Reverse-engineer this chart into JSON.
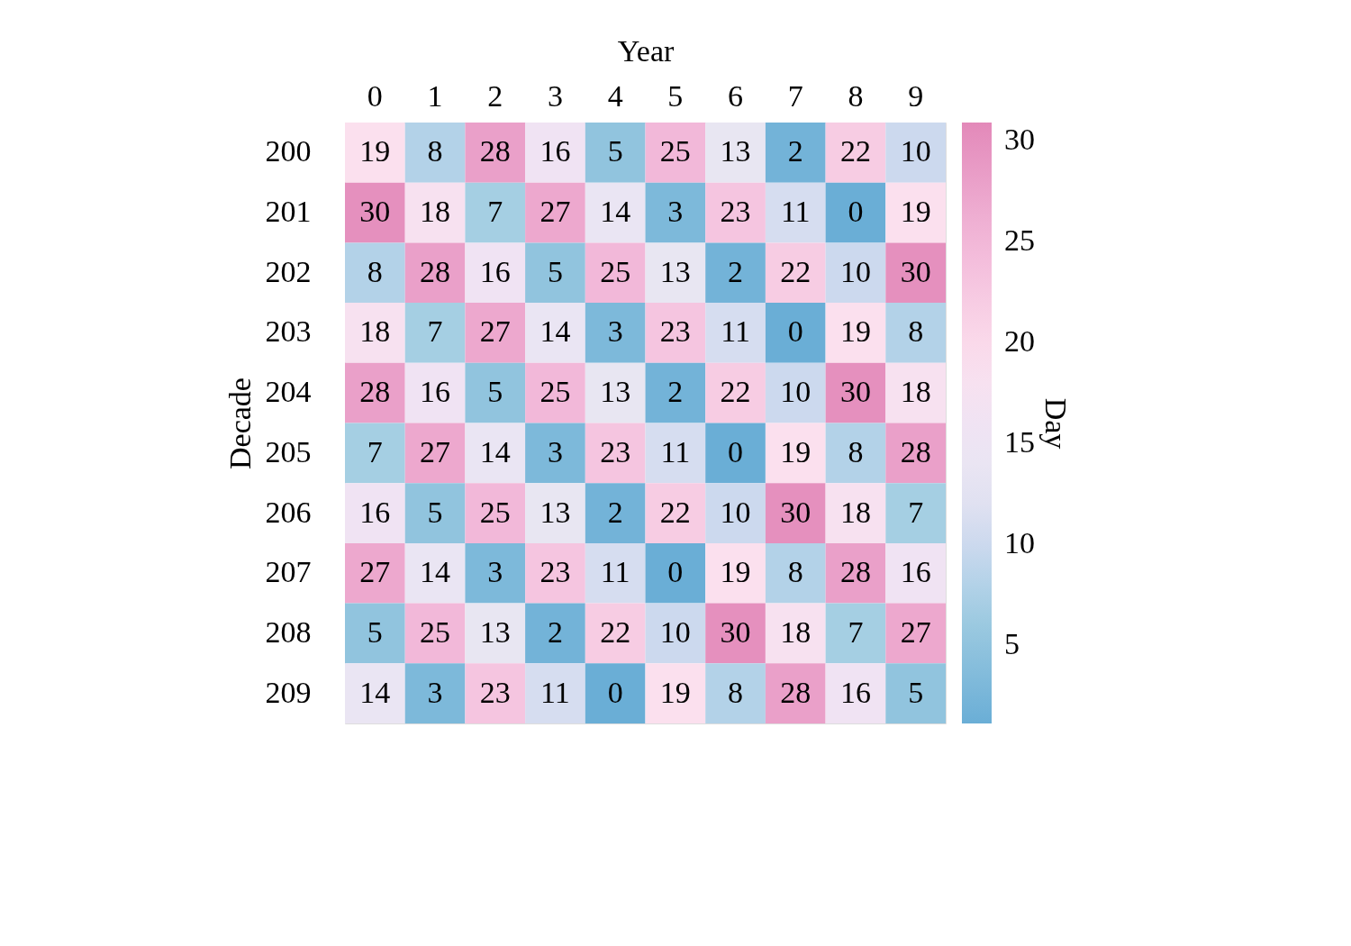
{
  "chart_data": {
    "type": "heatmap",
    "xlabel": "Year",
    "ylabel": "Decade",
    "clabel": "Day",
    "categories": [
      "0",
      "1",
      "2",
      "3",
      "4",
      "5",
      "6",
      "7",
      "8",
      "9"
    ],
    "y_categories": [
      "200",
      "201",
      "202",
      "203",
      "204",
      "205",
      "206",
      "207",
      "208",
      "209"
    ],
    "cells": [
      [
        19,
        8,
        28,
        16,
        5,
        25,
        13,
        2,
        22,
        10
      ],
      [
        30,
        18,
        7,
        27,
        14,
        3,
        23,
        11,
        0,
        19
      ],
      [
        8,
        28,
        16,
        5,
        25,
        13,
        2,
        22,
        10,
        30
      ],
      [
        18,
        7,
        27,
        14,
        3,
        23,
        11,
        0,
        19,
        8
      ],
      [
        28,
        16,
        5,
        25,
        13,
        2,
        22,
        10,
        30,
        18
      ],
      [
        7,
        27,
        14,
        3,
        23,
        11,
        0,
        19,
        8,
        28
      ],
      [
        16,
        5,
        25,
        13,
        2,
        22,
        10,
        30,
        18,
        7
      ],
      [
        27,
        14,
        3,
        23,
        11,
        0,
        19,
        8,
        28,
        16
      ],
      [
        5,
        25,
        13,
        2,
        22,
        10,
        30,
        18,
        7,
        27
      ],
      [
        14,
        3,
        23,
        11,
        0,
        19,
        8,
        28,
        16,
        5
      ]
    ],
    "clim": [
      1.1,
      30.9
    ],
    "cticks": [
      5,
      10,
      15,
      20,
      25,
      30
    ],
    "data_labels": true,
    "grid": false
  }
}
